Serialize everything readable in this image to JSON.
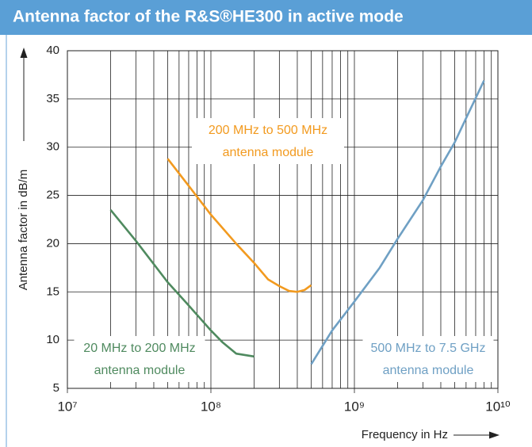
{
  "chart_data": {
    "type": "line",
    "title": "Antenna factor of the R&S®HE300 in active mode",
    "ylabel": "Antenna factor in dB/m",
    "xlabel": "Frequency in Hz",
    "xscale": "log",
    "grid": true,
    "xlim": [
      10000000,
      10000000000
    ],
    "ylim": [
      5,
      40
    ],
    "xticks": [
      {
        "value": 10000000,
        "label": "10⁷"
      },
      {
        "value": 100000000,
        "label": "10⁸"
      },
      {
        "value": 1000000000,
        "label": "10⁹"
      },
      {
        "value": 10000000000,
        "label": "10¹⁰"
      }
    ],
    "yticks": [
      5,
      10,
      15,
      20,
      25,
      30,
      35,
      40
    ],
    "series": [
      {
        "color": "#4f8a5f",
        "x": [
          20000000,
          30000000,
          50000000,
          70000000,
          100000000,
          120000000,
          150000000,
          200000000
        ],
        "values": [
          23.5,
          20.3,
          16,
          13.6,
          11,
          9.8,
          8.6,
          8.3
        ]
      },
      {
        "color": "#f29a1f",
        "x": [
          50000000,
          70000000,
          100000000,
          150000000,
          200000000,
          250000000,
          300000000,
          350000000,
          400000000,
          450000000,
          500000000
        ],
        "values": [
          28.8,
          26,
          23,
          20,
          18,
          16.3,
          15.6,
          15.1,
          15,
          15.2,
          15.7
        ]
      },
      {
        "color": "#6fa0c4",
        "x": [
          500000000,
          700000000,
          1000000000,
          1500000000,
          2000000000,
          3000000000,
          4000000000,
          5000000000,
          6000000000,
          8000000000
        ],
        "values": [
          7.5,
          11,
          14,
          17.5,
          20.5,
          24.5,
          28,
          30.5,
          33,
          36.9
        ]
      }
    ],
    "annotations": [
      {
        "lines": [
          "20 MHz to 200 MHz",
          "antenna module"
        ],
        "color": "#4f8a5f"
      },
      {
        "lines": [
          "200 MHz to 500 MHz",
          "antenna module"
        ],
        "color": "#f29a1f"
      },
      {
        "lines": [
          "500 MHz to 7.5 GHz",
          "antenna module"
        ],
        "color": "#6fa0c4"
      }
    ]
  }
}
